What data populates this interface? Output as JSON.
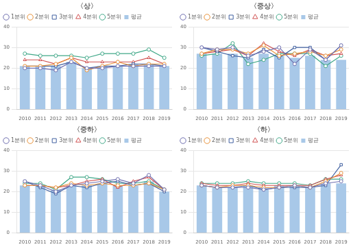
{
  "chart_data": [
    {
      "type": "bar",
      "title": "〈상〉",
      "categories": [
        "2010",
        "2011",
        "2012",
        "2013",
        "2014",
        "2015",
        "2016",
        "2017",
        "2018",
        "2019"
      ],
      "series": [
        {
          "name": "평균",
          "type": "bar",
          "color": "#a8c8e8",
          "values": [
            21,
            21,
            21,
            23,
            20,
            21,
            21,
            22,
            22,
            21
          ]
        },
        {
          "name": "1분위",
          "type": "line",
          "color": "#7070b0",
          "marker": "circle",
          "values": [
            20,
            20,
            19,
            23,
            20,
            20,
            21,
            21,
            21,
            21
          ]
        },
        {
          "name": "2분위",
          "type": "line",
          "color": "#e8923a",
          "marker": "circle",
          "values": [
            21,
            21,
            22,
            25,
            19,
            21,
            23,
            21,
            22,
            22
          ]
        },
        {
          "name": "3분위",
          "type": "line",
          "color": "#4060a0",
          "marker": "square",
          "values": [
            21,
            21,
            21,
            23,
            20,
            21,
            21,
            22,
            22,
            21
          ]
        },
        {
          "name": "4분위",
          "type": "line",
          "color": "#d05050",
          "marker": "triangle",
          "values": [
            24,
            24,
            22,
            25,
            23,
            23,
            23,
            23,
            25,
            22
          ]
        },
        {
          "name": "5분위",
          "type": "line",
          "color": "#40a888",
          "marker": "circle",
          "values": [
            27,
            26,
            26,
            26,
            25,
            27,
            27,
            27,
            29,
            25
          ]
        }
      ],
      "ylim": [
        0,
        40
      ],
      "yticks": [
        0,
        10,
        20,
        30,
        40
      ],
      "grid": true,
      "legend": "upper left"
    },
    {
      "type": "bar",
      "title": "〈중상〉",
      "categories": [
        "2010",
        "2011",
        "2012",
        "2013",
        "2014",
        "2015",
        "2016",
        "2017",
        "2018",
        "2019"
      ],
      "series": [
        {
          "name": "평균",
          "type": "bar",
          "color": "#a8c8e8",
          "values": [
            27,
            27,
            27,
            25,
            27,
            26,
            25,
            26,
            24,
            24
          ]
        },
        {
          "name": "1분위",
          "type": "line",
          "color": "#7070b0",
          "marker": "circle",
          "values": [
            30,
            29,
            30,
            26,
            28,
            30,
            22,
            29,
            24,
            31
          ]
        },
        {
          "name": "2분위",
          "type": "line",
          "color": "#e8923a",
          "marker": "circle",
          "values": [
            27,
            29,
            29,
            27,
            31,
            26,
            27,
            28,
            26,
            29
          ]
        },
        {
          "name": "3분위",
          "type": "line",
          "color": "#4060a0",
          "marker": "square",
          "values": [
            30,
            28,
            26,
            25,
            29,
            25,
            30,
            30,
            24,
            31
          ]
        },
        {
          "name": "4분위",
          "type": "line",
          "color": "#d05050",
          "marker": "triangle",
          "values": [
            27,
            28,
            29,
            26,
            32,
            28,
            26,
            29,
            26,
            27
          ]
        },
        {
          "name": "5분위",
          "type": "line",
          "color": "#40a888",
          "marker": "circle",
          "values": [
            26,
            27,
            32,
            22,
            24,
            27,
            27,
            27,
            21,
            26
          ]
        }
      ],
      "ylim": [
        0,
        40
      ],
      "yticks": [
        0,
        10,
        20,
        30,
        40
      ],
      "grid": true,
      "legend": "upper left"
    },
    {
      "type": "bar",
      "title": "〈중하〉",
      "categories": [
        "2010",
        "2011",
        "2012",
        "2013",
        "2014",
        "2015",
        "2016",
        "2017",
        "2018",
        "2019"
      ],
      "series": [
        {
          "name": "평균",
          "type": "bar",
          "color": "#a8c8e8",
          "values": [
            23,
            23,
            21,
            23,
            23,
            24,
            23,
            23,
            25,
            20
          ]
        },
        {
          "name": "1분위",
          "type": "line",
          "color": "#7070b0",
          "marker": "circle",
          "values": [
            25,
            23,
            20,
            23,
            24,
            25,
            26,
            24,
            28,
            21
          ]
        },
        {
          "name": "2분위",
          "type": "line",
          "color": "#e8923a",
          "marker": "circle",
          "values": [
            23,
            23,
            22,
            24,
            23,
            24,
            23,
            23,
            24,
            21
          ]
        },
        {
          "name": "3분위",
          "type": "line",
          "color": "#4060a0",
          "marker": "square",
          "values": [
            25,
            22,
            19,
            23,
            22,
            24,
            25,
            23,
            24,
            20
          ]
        },
        {
          "name": "4분위",
          "type": "line",
          "color": "#d05050",
          "marker": "triangle",
          "values": [
            23,
            23,
            22,
            23,
            25,
            26,
            22,
            25,
            27,
            21
          ]
        },
        {
          "name": "5분위",
          "type": "line",
          "color": "#40a888",
          "marker": "circle",
          "values": [
            24,
            24,
            21,
            27,
            27,
            26,
            24,
            24,
            25,
            21
          ]
        }
      ],
      "ylim": [
        0,
        40
      ],
      "yticks": [
        0,
        10,
        20,
        30,
        40
      ],
      "grid": true,
      "legend": "upper left"
    },
    {
      "type": "bar",
      "title": "〈하〉",
      "categories": [
        "2010",
        "2011",
        "2012",
        "2013",
        "2014",
        "2015",
        "2016",
        "2017",
        "2018",
        "2019"
      ],
      "series": [
        {
          "name": "평균",
          "type": "bar",
          "color": "#a8c8e8",
          "values": [
            23,
            22,
            22,
            23,
            22,
            23,
            23,
            22,
            24,
            24
          ]
        },
        {
          "name": "1분위",
          "type": "line",
          "color": "#7070b0",
          "marker": "circle",
          "values": [
            23,
            22,
            22,
            22,
            21,
            22,
            23,
            22,
            24,
            25
          ]
        },
        {
          "name": "2분위",
          "type": "line",
          "color": "#e8923a",
          "marker": "circle",
          "values": [
            23,
            22,
            23,
            23,
            22,
            22,
            23,
            22,
            25,
            29
          ]
        },
        {
          "name": "3분위",
          "type": "line",
          "color": "#4060a0",
          "marker": "square",
          "values": [
            23,
            22,
            22,
            23,
            21,
            22,
            22,
            22,
            23,
            33
          ]
        },
        {
          "name": "4분위",
          "type": "line",
          "color": "#d05050",
          "marker": "triangle",
          "values": [
            24,
            23,
            23,
            24,
            23,
            23,
            23,
            23,
            26,
            28
          ]
        },
        {
          "name": "5분위",
          "type": "line",
          "color": "#40a888",
          "marker": "circle",
          "values": [
            24,
            24,
            24,
            25,
            24,
            24,
            24,
            23,
            26,
            26
          ]
        }
      ],
      "ylim": [
        0,
        40
      ],
      "yticks": [
        0,
        10,
        20,
        30,
        40
      ],
      "grid": true,
      "legend": "upper left"
    }
  ]
}
